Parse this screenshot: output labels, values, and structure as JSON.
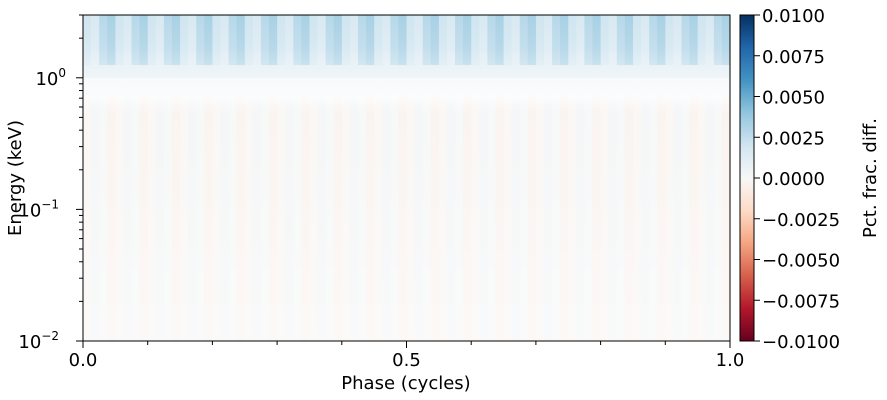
{
  "chart_data": {
    "type": "heatmap",
    "title": "",
    "xlabel": "Phase (cycles)",
    "ylabel": "Energy (keV)",
    "colorbar_label": "Pct. frac. diff.",
    "xlim": [
      0.0,
      1.0
    ],
    "ylim": [
      0.01,
      3.0
    ],
    "y_scale": "log",
    "colormap": "RdBu",
    "clim": [
      -0.01,
      0.01
    ],
    "x_ticks": [
      {
        "value": 0.0,
        "label": "0.0"
      },
      {
        "value": 0.5,
        "label": "0.5"
      },
      {
        "value": 1.0,
        "label": "1.0"
      }
    ],
    "x_minor_ticks": [
      0.1,
      0.2,
      0.3,
      0.4,
      0.6,
      0.7,
      0.8,
      0.9
    ],
    "y_ticks": [
      {
        "value": 0.01,
        "base": "10",
        "exp": "−2"
      },
      {
        "value": 0.1,
        "base": "10",
        "exp": "−1"
      },
      {
        "value": 1.0,
        "base": "10",
        "exp": "0"
      }
    ],
    "colorbar_ticks": [
      {
        "value": 0.01,
        "label": "0.0100"
      },
      {
        "value": 0.0075,
        "label": "0.0075"
      },
      {
        "value": 0.005,
        "label": "0.0050"
      },
      {
        "value": 0.0025,
        "label": "0.0025"
      },
      {
        "value": 0.0,
        "label": "0.0000"
      },
      {
        "value": -0.0025,
        "label": "−0.0025"
      },
      {
        "value": -0.005,
        "label": "−0.0050"
      },
      {
        "value": -0.0075,
        "label": "−0.0075"
      },
      {
        "value": -0.01,
        "label": "−0.0100"
      }
    ],
    "pattern": {
      "stripe_cycles": 20,
      "high_energy_mean": 0.0025,
      "high_energy_amplitude": 0.0012,
      "low_energy_amplitude": 0.0006,
      "transition_energy_keV": 1.0
    },
    "grid": false,
    "legend": "none"
  },
  "colors": {
    "colormap_stops": [
      "#67001f",
      "#b2182b",
      "#d6604d",
      "#f4a582",
      "#fddbc7",
      "#f7f7f7",
      "#d1e5f0",
      "#92c5de",
      "#4393c3",
      "#2166ac",
      "#053061"
    ]
  }
}
